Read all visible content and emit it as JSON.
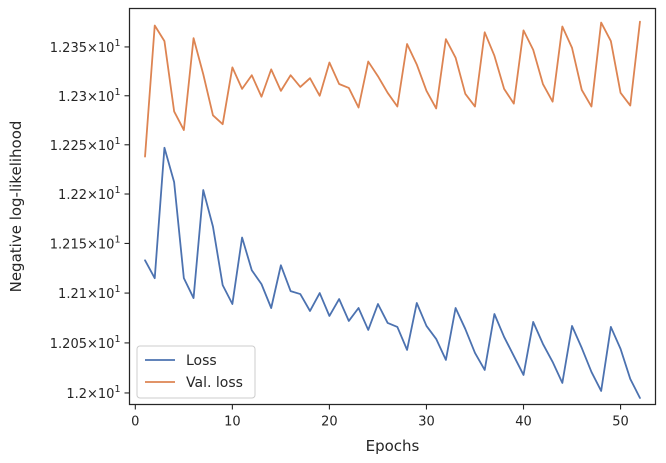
{
  "chart_data": {
    "type": "line",
    "xlabel": "Epochs",
    "ylabel": "Negative log-likelihood",
    "xlim": [
      -0.6,
      53.6
    ],
    "ylim": [
      11.9885,
      12.3895
    ],
    "xticks": [
      0,
      10,
      20,
      30,
      40,
      50
    ],
    "xtick_labels": [
      "0",
      "10",
      "20",
      "30",
      "40",
      "50"
    ],
    "yticks": [
      12.0,
      12.05,
      12.1,
      12.15,
      12.2,
      12.25,
      12.3,
      12.35
    ],
    "ytick_labels": [
      {
        "mantissa": "1.2",
        "base": "10",
        "exp": "1"
      },
      {
        "mantissa": "1.205",
        "base": "10",
        "exp": "1"
      },
      {
        "mantissa": "1.21",
        "base": "10",
        "exp": "1"
      },
      {
        "mantissa": "1.215",
        "base": "10",
        "exp": "1"
      },
      {
        "mantissa": "1.22",
        "base": "10",
        "exp": "1"
      },
      {
        "mantissa": "1.225",
        "base": "10",
        "exp": "1"
      },
      {
        "mantissa": "1.23",
        "base": "10",
        "exp": "1"
      },
      {
        "mantissa": "1.235",
        "base": "10",
        "exp": "1"
      }
    ],
    "y_scale": "log",
    "grid": false,
    "legend_position": "lower-left",
    "x": [
      1,
      2,
      3,
      4,
      5,
      6,
      7,
      8,
      9,
      10,
      11,
      12,
      13,
      14,
      15,
      16,
      17,
      18,
      19,
      20,
      21,
      22,
      23,
      24,
      25,
      26,
      27,
      28,
      29,
      30,
      31,
      32,
      33,
      34,
      35,
      36,
      37,
      38,
      39,
      40,
      41,
      42,
      43,
      44,
      45,
      46,
      47,
      48,
      49,
      50,
      51,
      52
    ],
    "series": [
      {
        "name": "Loss",
        "color": "#4c72b0",
        "values": [
          12.133,
          12.115,
          12.247,
          12.212,
          12.115,
          12.095,
          12.204,
          12.167,
          12.108,
          12.089,
          12.156,
          12.123,
          12.109,
          12.085,
          12.128,
          12.102,
          12.099,
          12.082,
          12.1,
          12.077,
          12.094,
          12.072,
          12.085,
          12.063,
          12.089,
          12.07,
          12.066,
          12.043,
          12.09,
          12.067,
          12.054,
          12.033,
          12.085,
          12.064,
          12.04,
          12.023,
          12.079,
          12.056,
          12.037,
          12.018,
          12.071,
          12.049,
          12.031,
          12.01,
          12.067,
          12.045,
          12.021,
          12.002,
          12.066,
          12.044,
          12.014,
          11.995
        ]
      },
      {
        "name": "Val. loss",
        "color": "#dd8452",
        "values": [
          12.238,
          12.372,
          12.356,
          12.284,
          12.265,
          12.359,
          12.322,
          12.28,
          12.271,
          12.329,
          12.307,
          12.321,
          12.299,
          12.327,
          12.305,
          12.321,
          12.309,
          12.318,
          12.3,
          12.334,
          12.312,
          12.308,
          12.288,
          12.335,
          12.32,
          12.303,
          12.289,
          12.353,
          12.332,
          12.305,
          12.287,
          12.358,
          12.339,
          12.302,
          12.289,
          12.365,
          12.341,
          12.307,
          12.292,
          12.367,
          12.347,
          12.312,
          12.294,
          12.371,
          12.349,
          12.306,
          12.289,
          12.375,
          12.356,
          12.303,
          12.29,
          12.376
        ]
      }
    ]
  }
}
